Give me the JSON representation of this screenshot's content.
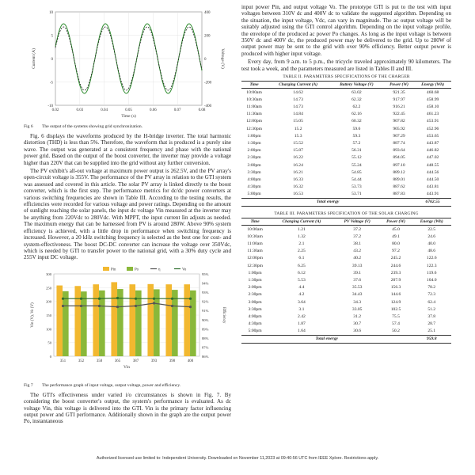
{
  "fig6": {
    "caption_num": "Fig 6",
    "caption_text": "The output of the systems showing grid synchronization.",
    "y_left_label": "Current (A)",
    "y_right_label": "Voltage (V)",
    "x_label": "Time (s)",
    "x_ticks": [
      "0.02",
      "0.03",
      "0.04",
      "0.05",
      "0.06",
      "0.07",
      "0.08"
    ],
    "y_left_ticks": [
      "10",
      "5",
      "0",
      "-5",
      "-10"
    ],
    "y_right_ticks": [
      "400",
      "200",
      "0",
      "-200",
      "-400"
    ]
  },
  "left_paras": [
    "Fig. 6 displays the waveforms produced by the H-bridge inverter. The total harmonic distortion (THD) is less than 5%. Therefore, the waveform that is produced is a purely sine wave. The output was generated at a consistent frequency and phase with the national power grid. Based on the output of the boost converter, the inverter may provide a voltage higher than 220V that can be supplied into the grid without any further conversion.",
    "The PV exhibit's all-out voltage at maximum power output is 262.5V, and the PV array's open-circuit voltage is 355V. The performance of the PV array in relation to the GTI system was assessed and covered in this article. The solar PV array is linked directly to the boost converter, which is the first step. The performance metrics for dc/dc power converters at various switching frequencies are shown in Table III. According to the testing results, the efficiencies were recorded for various voltage and power ratings. Depending on the amount of sunlight reaching the solar panels, the input dc voltage Vin measured at the inverter may be anything from 220Vdc to 280Vdc. With MPPT, the input current Iin adjusts as needed. The maximum energy that can be harnessed from PV is around 280W. Above 90% system efficiency is achieved, with a little drop in performance when switching frequency is increased. However, a 20 kHz switching frequency is selected as the best one for cost- and system-effectiveness. The boost DC-DC converter can increase the voltage over 350Vdc, which is needed by GTI to transfer power to the national grid, with a 30% duty cycle and 255V input DC voltage."
  ],
  "chart_data": {
    "type": "bar",
    "categories": [
      "351",
      "352",
      "358",
      "365",
      "387",
      "393",
      "398",
      "400"
    ],
    "series": [
      {
        "name": "Pin",
        "values": [
          258,
          256,
          262,
          270,
          262,
          263,
          262,
          262
        ]
      },
      {
        "name": "Po",
        "values": [
          237,
          236,
          240,
          245,
          240,
          244,
          242,
          240
        ]
      },
      {
        "name": "η",
        "values": [
          91.5,
          91.5,
          91.5,
          91.4,
          91.5,
          91.8,
          91.5,
          91.4
        ]
      },
      {
        "name": "Vo",
        "values": [
          210,
          210,
          210,
          212,
          210,
          210,
          210,
          210
        ]
      }
    ],
    "xlabel": "Vin",
    "ylabel": "Vin (V), Vo (V)",
    "y2label": "Efficiency",
    "y_ticks": [
      "300",
      "250",
      "200",
      "150",
      "100",
      "50",
      "0"
    ],
    "y2_ticks": [
      "95%",
      "94%",
      "93%",
      "92%",
      "91%",
      "90%",
      "89%",
      "88%",
      "87%",
      "86%"
    ],
    "ylim": [
      0,
      300
    ],
    "y2lim": [
      86,
      95
    ],
    "legend": "top"
  },
  "fig7": {
    "caption_num": "Fig 7",
    "caption_text": "The performance graph of input voltage, output voltage, power and efficiency."
  },
  "left_paras2": [
    "The GTI's effectiveness under varied i/o circumstances is shown in Fig. 7. By considering the boost converter's output, the system's performance is evaluated. As dc voltage Vin, this voltage is delivered into the GTI. Vin is the primary factor influencing output power and GTI performance. Additionally shown in the graph are the output power Po, instantaneous"
  ],
  "right_paras": [
    "input power Pin, and output voltage Vo. The prototype GTI is put to the test with input voltages between 310V dc and 400V dc to validate the suggested algorithm. Depending on the situation, the input voltage, Vdc, can vary in magnitude. The ac output voltage will be suitably adjusted using the GTI control algorithm. Depending on the input voltage profile, the envelope of the produced ac power Po changes. As long as the input voltage is between 350V dc and 400V dc, the produced power may be delivered to the grid. Up to 280W of output power may be sent to the grid with over 90% efficiency. Better output power is produced with higher input voltage.",
    "Every day, from 9 a.m. to 5 p.m., the tricycle traveled approximately 90 kilometers. The test took a week, and the parameters measured are listed in Tables II and III."
  ],
  "table2": {
    "caption": "TABLE II.     PARAMETERS SPECIFICATIONS OF THE CHARGER",
    "headers": [
      "Time",
      "Charging Current (A)",
      "Battery Voltage (V)",
      "Power (W)",
      "Energy (Wh)"
    ],
    "rows": [
      [
        "10:00am",
        "14.62",
        "63.02",
        "921.35",
        "460.68"
      ],
      [
        "10:30am",
        "14.73",
        "62.32",
        "917.97",
        "458.99"
      ],
      [
        "11:00am",
        "14.73",
        "62.2",
        "916.21",
        "458.10"
      ],
      [
        "11:30am",
        "14.84",
        "62.16",
        "922.45",
        "461.23"
      ],
      [
        "12:00pm",
        "15.05",
        "60.32",
        "907.82",
        "453.91"
      ],
      [
        "12:30pm",
        "15.2",
        "59.6",
        "905.92",
        "452.96"
      ],
      [
        "1:00pm",
        "15.3",
        "59.3",
        "907.29",
        "453.65"
      ],
      [
        "1:30pm",
        "15.52",
        "57.2",
        "887.74",
        "443.87"
      ],
      [
        "2:00pm",
        "15.87",
        "56.31",
        "893.64",
        "446.82"
      ],
      [
        "2:30pm",
        "16.22",
        "55.12",
        "894.05",
        "447.02"
      ],
      [
        "3:00pm",
        "16.24",
        "55.24",
        "897.10",
        "448.55"
      ],
      [
        "3:30pm",
        "16.21",
        "54.85",
        "889.12",
        "444.56"
      ],
      [
        "4:00pm",
        "16.33",
        "54.44",
        "889.01",
        "444.50"
      ],
      [
        "4:30pm",
        "16.32",
        "53.73",
        "887.62",
        "443.81"
      ],
      [
        "5:00pm",
        "16.53",
        "53.71",
        "887.83",
        "443.91"
      ]
    ],
    "total_label": "Total energy",
    "total_value": "6762.55"
  },
  "table3": {
    "caption": "TABLE III.     PARAMETERS SPECIFICATION OF THE SOLAR CHARGING",
    "headers": [
      "Time",
      "Charging Current (A)",
      "PV Voltage (V)",
      "Power (W)",
      "Energy (Wh)"
    ],
    "rows": [
      [
        "10:00am",
        "1.21",
        "37.2",
        "45.0",
        "22.5"
      ],
      [
        "10:30am",
        "1.32",
        "37.2",
        "49.1",
        "24.6"
      ],
      [
        "11:00am",
        "2.1",
        "38.1",
        "80.0",
        "40.0"
      ],
      [
        "11:30am",
        "2.25",
        "43.2",
        "97.2",
        "48.6"
      ],
      [
        "12:00pm",
        "6.1",
        "40.2",
        "245.2",
        "122.6"
      ],
      [
        "12:30pm",
        "6.25",
        "39.13",
        "244.6",
        "122.3"
      ],
      [
        "1:00pm",
        "6.12",
        "39.1",
        "239.3",
        "119.6"
      ],
      [
        "1:30pm",
        "5.53",
        "37.6",
        "207.9",
        "104.0"
      ],
      [
        "2:00pm",
        "4.4",
        "35.53",
        "156.3",
        "78.2"
      ],
      [
        "2:30pm",
        "4.2",
        "34.43",
        "144.6",
        "72.3"
      ],
      [
        "3:00pm",
        "3.64",
        "34.3",
        "124.9",
        "62.4"
      ],
      [
        "3:30pm",
        "3.1",
        "33.05",
        "102.5",
        "51.2"
      ],
      [
        "4:00pm",
        "2.42",
        "31.2",
        "75.5",
        "37.8"
      ],
      [
        "4:30pm",
        "1.87",
        "30.7",
        "57.4",
        "28.7"
      ],
      [
        "5:00pm",
        "1.64",
        "30.6",
        "50.2",
        "25.1"
      ]
    ],
    "total_label": "Total energy",
    "total_value": "959.8"
  },
  "footer": "Authorized licensed use limited to: Independent University. Downloaded on November 11,2023 at 09:40:56 UTC from IEEE Xplore.  Restrictions apply."
}
